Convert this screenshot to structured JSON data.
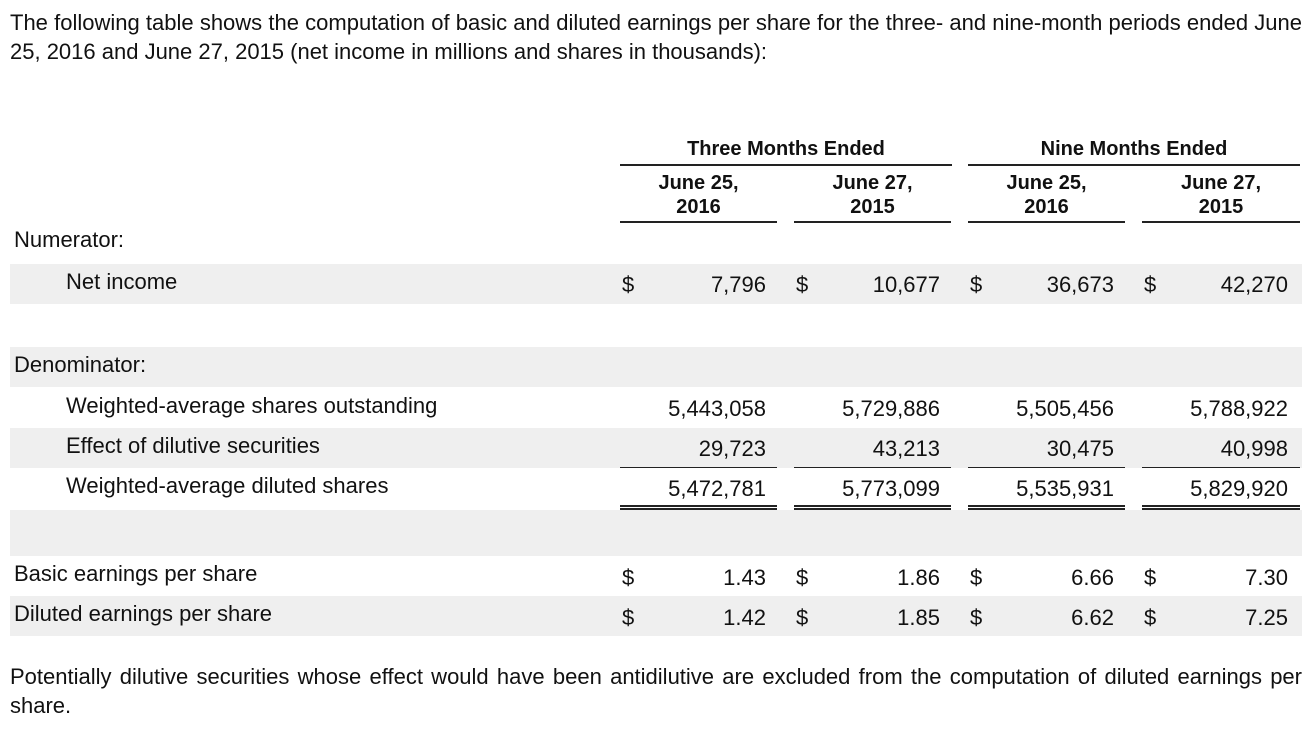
{
  "intro": "The following table shows the computation of basic and diluted earnings per share for the three- and nine-month periods ended June 25, 2016 and June 27, 2015 (net income in millions and shares in thousands):",
  "header": {
    "group1": "Three Months Ended",
    "group2": "Nine Months Ended",
    "columns": [
      {
        "line1": "June 25,",
        "line2": "2016"
      },
      {
        "line1": "June 27,",
        "line2": "2015"
      },
      {
        "line1": "June 25,",
        "line2": "2016"
      },
      {
        "line1": "June 27,",
        "line2": "2015"
      }
    ]
  },
  "currency_symbol": "$",
  "numerator": {
    "label": "Numerator:",
    "net_income": {
      "label": "Net income",
      "values": [
        "7,796",
        "10,677",
        "36,673",
        "42,270"
      ]
    }
  },
  "denominator": {
    "label": "Denominator:",
    "weighted_avg": {
      "label": "Weighted-average shares outstanding",
      "values": [
        "5,443,058",
        "5,729,886",
        "5,505,456",
        "5,788,922"
      ]
    },
    "dilutive": {
      "label": "Effect of dilutive securities",
      "values": [
        "29,723",
        "43,213",
        "30,475",
        "40,998"
      ]
    },
    "diluted_shares": {
      "label": "Weighted-average diluted shares",
      "values": [
        "5,472,781",
        "5,773,099",
        "5,535,931",
        "5,829,920"
      ]
    }
  },
  "basic_eps": {
    "label": "Basic earnings per share",
    "values": [
      "1.43",
      "1.86",
      "6.66",
      "7.30"
    ]
  },
  "diluted_eps": {
    "label": "Diluted earnings per share",
    "values": [
      "1.42",
      "1.85",
      "6.62",
      "7.25"
    ]
  },
  "outro": "Potentially dilutive securities whose effect would have been antidilutive are excluded from the computation of diluted earnings per share."
}
